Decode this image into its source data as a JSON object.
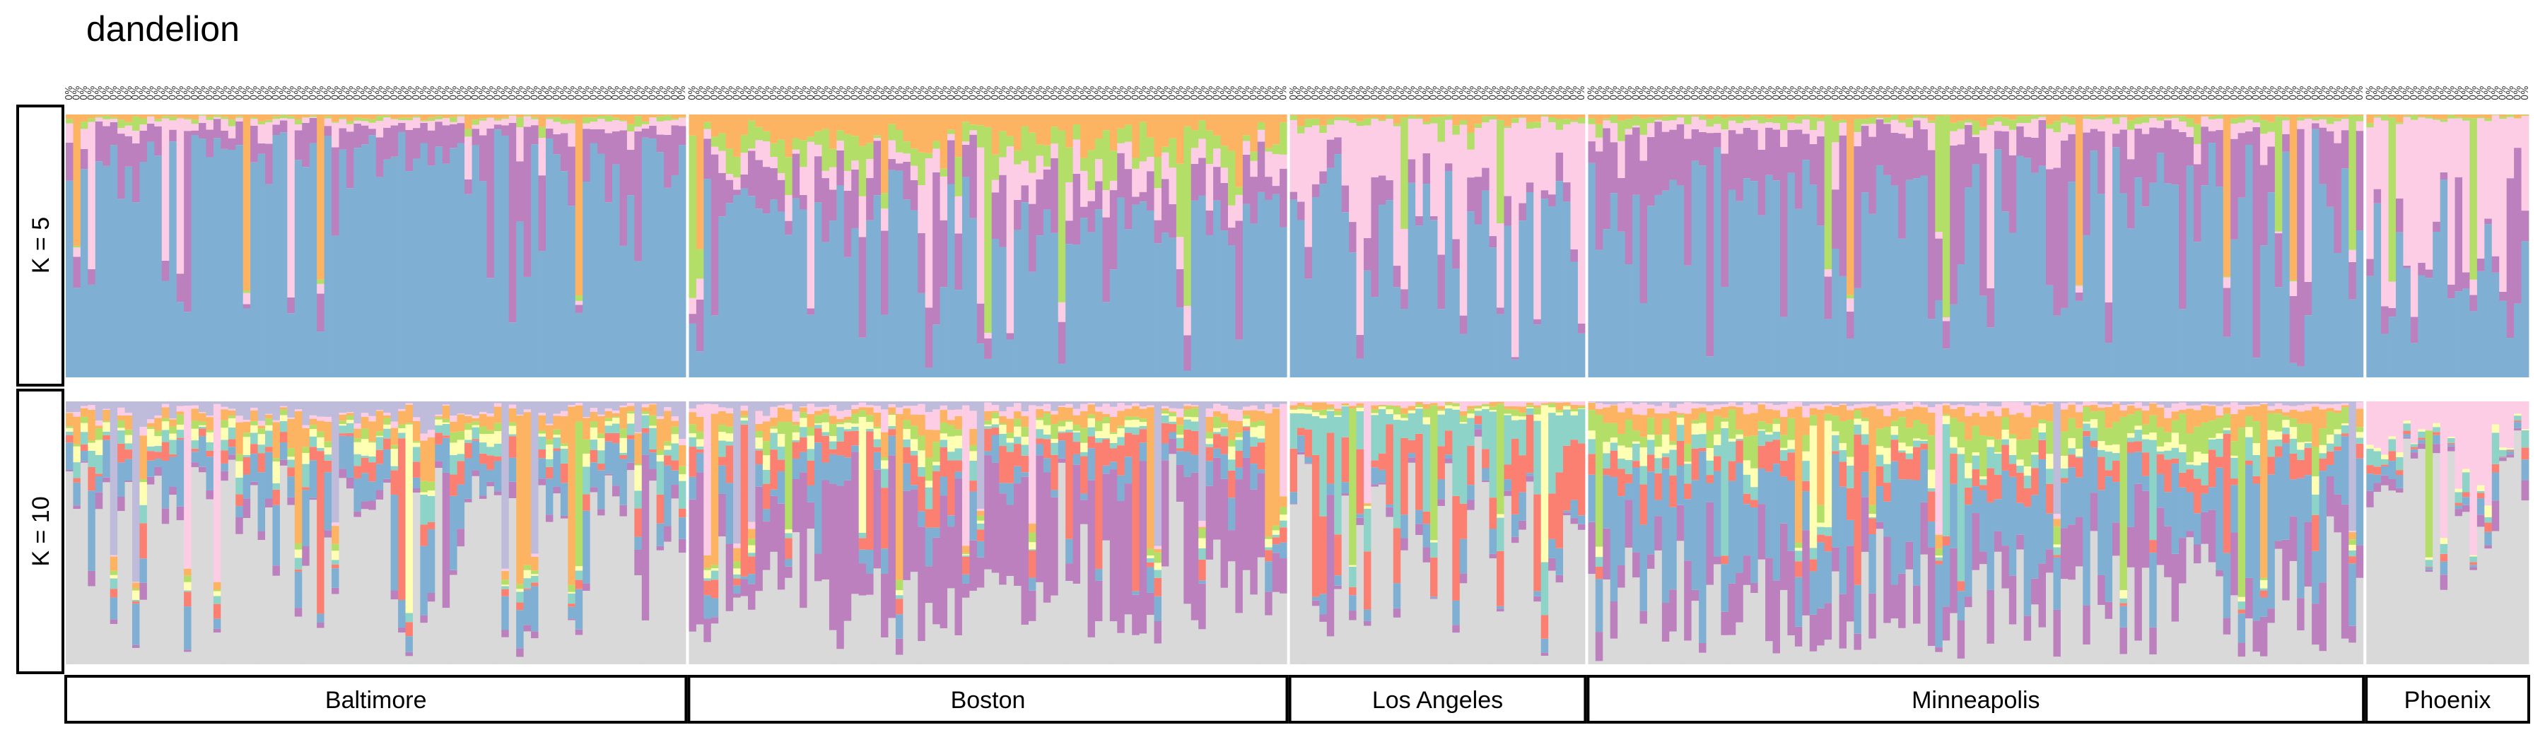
{
  "chart_data": {
    "type": "bar",
    "subtype": "stacked-admixture",
    "title": "dandelion",
    "rows": [
      "K = 5",
      "K = 10"
    ],
    "populations": [
      {
        "name": "Baltimore",
        "n": 84
      },
      {
        "name": "Boston",
        "n": 81
      },
      {
        "name": "Los Angeles",
        "n": 40
      },
      {
        "name": "Minneapolis",
        "n": 105
      },
      {
        "name": "Phoenix",
        "n": 22
      }
    ],
    "sample_label_prefix": "0%",
    "y_range": [
      0,
      1
    ],
    "colors": {
      "blue": "#7fb0d3",
      "purple": "#bb80bd",
      "pink": "#fdcde5",
      "green": "#b3de68",
      "orange": "#fdb462",
      "grey": "#d9d9d9",
      "red": "#fb8072",
      "teal": "#8dd3c7",
      "yellow": "#ffffb3",
      "lavender": "#bfbbdb"
    },
    "k5_clusters": [
      "blue",
      "purple",
      "pink",
      "green",
      "orange"
    ],
    "k10_clusters": [
      "grey",
      "purple",
      "blue",
      "red",
      "teal",
      "yellow",
      "green",
      "orange",
      "pink",
      "lavender"
    ],
    "k5_profiles": {
      "Baltimore": [
        0.86,
        0.09,
        0.03,
        0.01,
        0.01
      ],
      "Boston": [
        0.58,
        0.15,
        0.08,
        0.09,
        0.1
      ],
      "Los Angeles": [
        0.62,
        0.07,
        0.27,
        0.02,
        0.02
      ],
      "Minneapolis": [
        0.72,
        0.21,
        0.04,
        0.02,
        0.01
      ],
      "Phoenix": [
        0.4,
        0.05,
        0.53,
        0.01,
        0.01
      ]
    },
    "k10_profiles": {
      "Baltimore": [
        0.62,
        0.03,
        0.12,
        0.04,
        0.04,
        0.03,
        0.02,
        0.05,
        0.01,
        0.04
      ],
      "Boston": [
        0.28,
        0.38,
        0.08,
        0.08,
        0.03,
        0.03,
        0.03,
        0.04,
        0.03,
        0.02
      ],
      "Los Angeles": [
        0.58,
        0.02,
        0.04,
        0.18,
        0.14,
        0.01,
        0.01,
        0.01,
        0.01,
        0.0
      ],
      "Minneapolis": [
        0.3,
        0.16,
        0.26,
        0.07,
        0.04,
        0.03,
        0.06,
        0.05,
        0.02,
        0.01
      ],
      "Phoenix": [
        0.78,
        0.02,
        0.02,
        0.01,
        0.02,
        0.01,
        0.0,
        0.0,
        0.14,
        0.0
      ]
    }
  }
}
